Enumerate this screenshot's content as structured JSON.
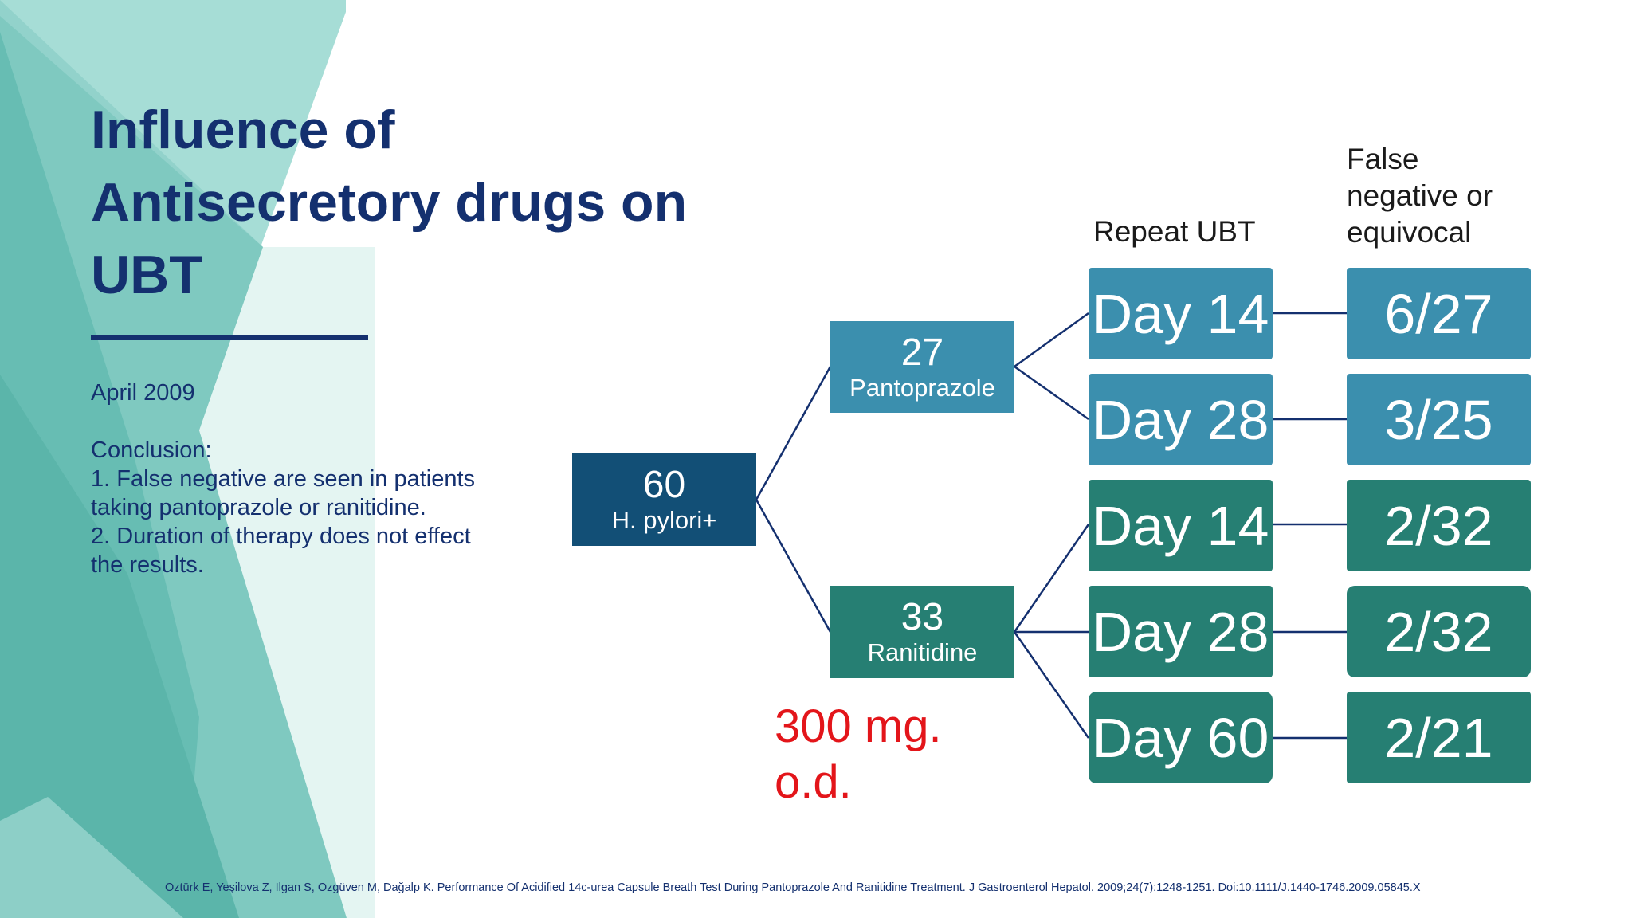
{
  "slide": {
    "title_lines": [
      "Influence of",
      "Antisecretory drugs on",
      "UBT"
    ],
    "date": "April 2009",
    "conclusion": [
      "Conclusion:",
      "1. False negative are seen in patients",
      "taking pantoprazole or ranitidine.",
      "2. Duration of therapy does not effect",
      "the results."
    ],
    "citation": "Oztürk E, Yeşilova Z, Ilgan S, Ozgüven M, Dağalp K. Performance Of Acidified 14c-urea Capsule Breath Test During Pantoprazole And Ranitidine Treatment. J Gastroenterol Hepatol. 2009;24(7):1248-1251. Doi:10.1111/J.1440-1746.2009.05845.X"
  },
  "diagram": {
    "root": {
      "number": "60",
      "label": "H. pylori+"
    },
    "branches": [
      {
        "number": "27",
        "label": "Pantoprazole",
        "color": "#3b8fae"
      },
      {
        "number": "33",
        "label": "Ranitidine",
        "color": "#267f73"
      }
    ],
    "column_headers": {
      "repeat": "Repeat UBT",
      "result_lines": [
        "False",
        "negative or",
        "equivocal"
      ]
    },
    "rows": [
      {
        "day": "Day 14",
        "result": "6/27"
      },
      {
        "day": "Day 28",
        "result": "3/25"
      },
      {
        "day": "Day 14",
        "result": "2/32"
      },
      {
        "day": "Day 28",
        "result": "2/32"
      },
      {
        "day": "Day 60",
        "result": "2/21"
      }
    ],
    "dose_lines": [
      "300 mg.",
      "o.d."
    ]
  },
  "colors": {
    "title": "#14306f",
    "root_box": "#124f76",
    "pantoprazole": "#3b8fae",
    "ranitidine": "#267f73",
    "dose_text": "#e3151a",
    "connector": "#14306f"
  }
}
